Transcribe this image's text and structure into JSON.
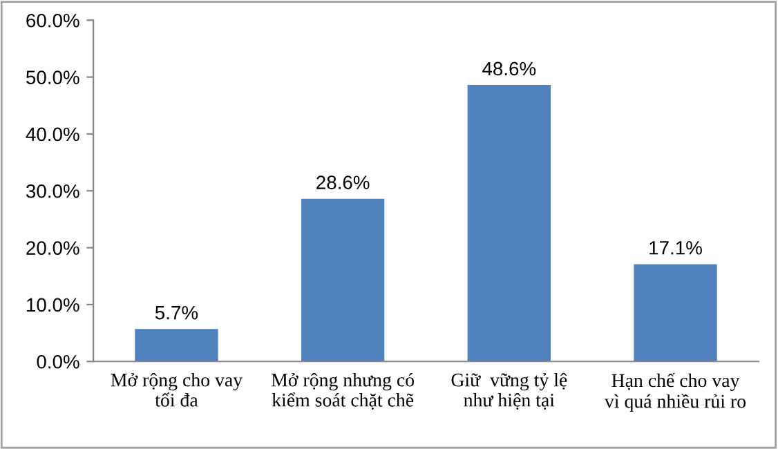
{
  "chart_data": {
    "type": "bar",
    "categories": [
      "Mở rộng cho vay\ntối đa",
      "Mở rộng nhưng có\nkiểm soát chặt chẽ",
      "Giữ  vững tỷ lệ\nnhư hiện tại",
      "Hạn chế cho vay\nvì quá nhiều rủi ro"
    ],
    "values": [
      5.7,
      28.6,
      48.6,
      17.1
    ],
    "value_labels": [
      "5.7%",
      "28.6%",
      "48.6%",
      "17.1%"
    ],
    "color": "#4f81bd",
    "ylim": [
      0,
      60
    ],
    "yticks": [
      {
        "value": 0,
        "label": "0.0%"
      },
      {
        "value": 10,
        "label": "10.0%"
      },
      {
        "value": 20,
        "label": "20.0%"
      },
      {
        "value": 30,
        "label": "30.0%"
      },
      {
        "value": 40,
        "label": "40.0%"
      },
      {
        "value": 50,
        "label": "50.0%"
      },
      {
        "value": 60,
        "label": "60.0%"
      }
    ],
    "grid": false,
    "legend": false
  }
}
